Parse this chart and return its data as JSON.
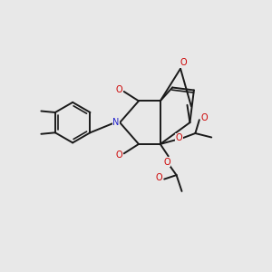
{
  "bg_color": "#e8e8e8",
  "bond_color": "#1a1a1a",
  "O_color": "#cc0000",
  "N_color": "#2222cc",
  "line_width": 1.4,
  "figsize": [
    3.0,
    3.0
  ],
  "dpi": 100,
  "xlim": [
    0,
    10
  ],
  "ylim": [
    0,
    10
  ]
}
